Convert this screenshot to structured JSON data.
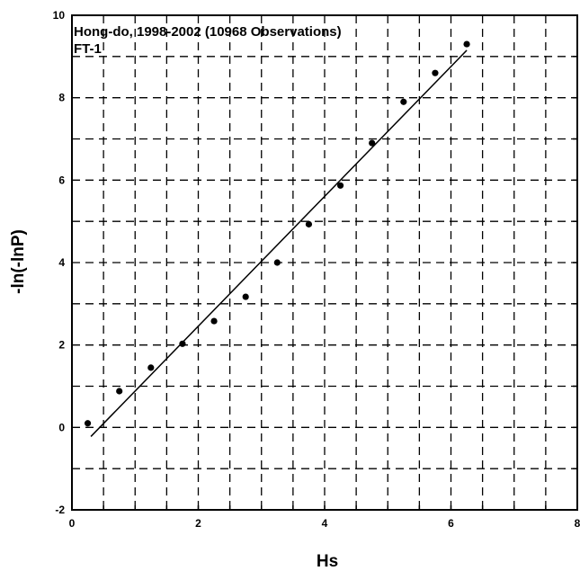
{
  "chart_data": {
    "type": "scatter",
    "annotations": [
      "Hong-do, 1998-2002 (10968 Observations)",
      "FT-1"
    ],
    "xlabel": "Hs",
    "ylabel": "-ln(-lnP)",
    "xlim": [
      0,
      8
    ],
    "ylim": [
      -2,
      10
    ],
    "x_ticks": [
      "0",
      "2",
      "4",
      "6",
      "8"
    ],
    "y_ticks": [
      "-2",
      "0",
      "2",
      "4",
      "6",
      "8",
      "10"
    ],
    "grid": true,
    "points": [
      {
        "x": 0.25,
        "y": 0.1
      },
      {
        "x": 0.75,
        "y": 0.88
      },
      {
        "x": 1.25,
        "y": 1.45
      },
      {
        "x": 1.75,
        "y": 2.03
      },
      {
        "x": 2.25,
        "y": 2.58
      },
      {
        "x": 2.75,
        "y": 3.17
      },
      {
        "x": 3.25,
        "y": 4.0
      },
      {
        "x": 3.75,
        "y": 4.93
      },
      {
        "x": 4.25,
        "y": 5.87
      },
      {
        "x": 4.75,
        "y": 6.9
      },
      {
        "x": 5.25,
        "y": 7.9
      },
      {
        "x": 5.75,
        "y": 8.6
      },
      {
        "x": 6.25,
        "y": 9.3
      }
    ],
    "fit_line": {
      "x": [
        0.3,
        6.25
      ],
      "y": [
        -0.22,
        9.15
      ]
    }
  }
}
